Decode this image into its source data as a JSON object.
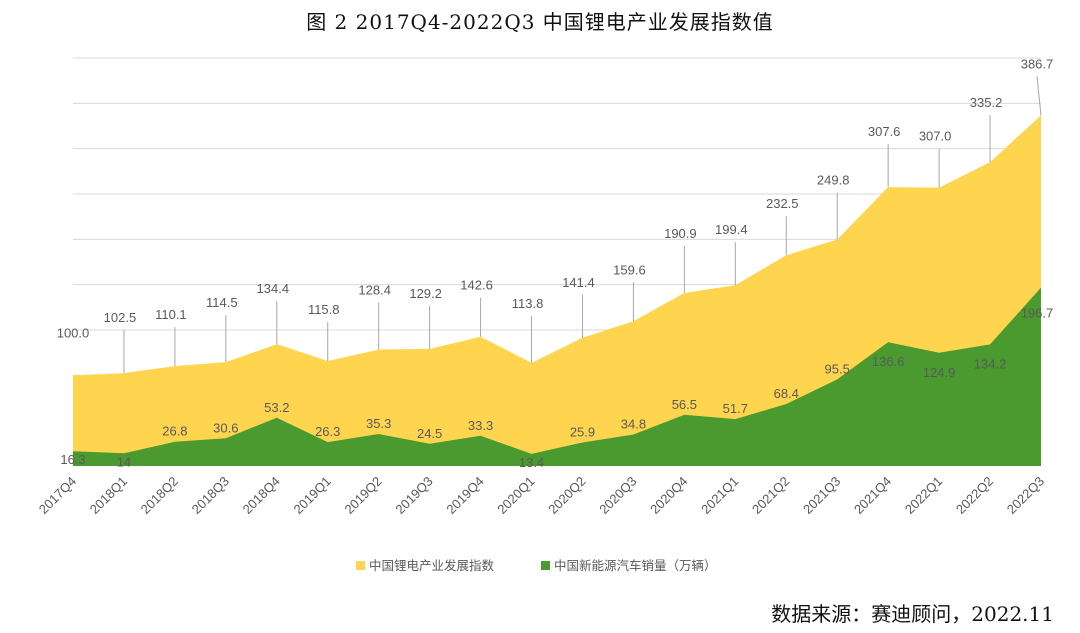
{
  "title": "图 2  2017Q4-2022Q3 中国锂电产业发展指数值",
  "source": "数据来源：赛迪顾问，2022.11",
  "colors": {
    "index": "#FFD54F",
    "sales": "#4A9A2F",
    "grid": "#D9D9D9",
    "leader": "#A6A6A6"
  },
  "chart_data": {
    "type": "area",
    "categories": [
      "2017Q4",
      "2018Q1",
      "2018Q2",
      "2018Q3",
      "2018Q4",
      "2019Q1",
      "2019Q2",
      "2019Q3",
      "2019Q4",
      "2020Q1",
      "2020Q2",
      "2020Q3",
      "2020Q4",
      "2021Q1",
      "2021Q2",
      "2021Q3",
      "2021Q4",
      "2022Q1",
      "2022Q2",
      "2022Q3"
    ],
    "series": [
      {
        "name": "中国锂电产业发展指数",
        "color": "#FFD54F",
        "values": [
          100.0,
          102.5,
          110.1,
          114.5,
          134.4,
          115.8,
          128.4,
          129.2,
          142.6,
          113.8,
          141.4,
          159.6,
          190.9,
          199.4,
          232.5,
          249.8,
          307.6,
          307.0,
          335.2,
          386.7
        ],
        "labels": [
          "100.0",
          "102.5",
          "110.1",
          "114.5",
          "134.4",
          "115.8",
          "128.4",
          "129.2",
          "142.6",
          "113.8",
          "141.4",
          "159.6",
          "190.9",
          "199.4",
          "232.5",
          "249.8",
          "307.6",
          "307.0",
          "335.2",
          "386.7"
        ]
      },
      {
        "name": "中国新能源汽车销量（万辆）",
        "color": "#4A9A2F",
        "values": [
          16.3,
          14,
          26.8,
          30.6,
          53.2,
          26.3,
          35.3,
          24.5,
          33.3,
          13.4,
          25.9,
          34.8,
          56.5,
          51.7,
          68.4,
          95.5,
          136.6,
          124.9,
          134.2,
          196.7
        ],
        "labels": [
          "16.3",
          "14",
          "26.8",
          "30.6",
          "53.2",
          "26.3",
          "35.3",
          "24.5",
          "33.3",
          "13.4",
          "25.9",
          "34.8",
          "56.5",
          "51.7",
          "68.4",
          "95.5",
          "136.6",
          "124.9",
          "134.2",
          "196.7"
        ]
      }
    ],
    "ylim": [
      0,
      450
    ],
    "grid": true,
    "legend_position": "bottom"
  }
}
